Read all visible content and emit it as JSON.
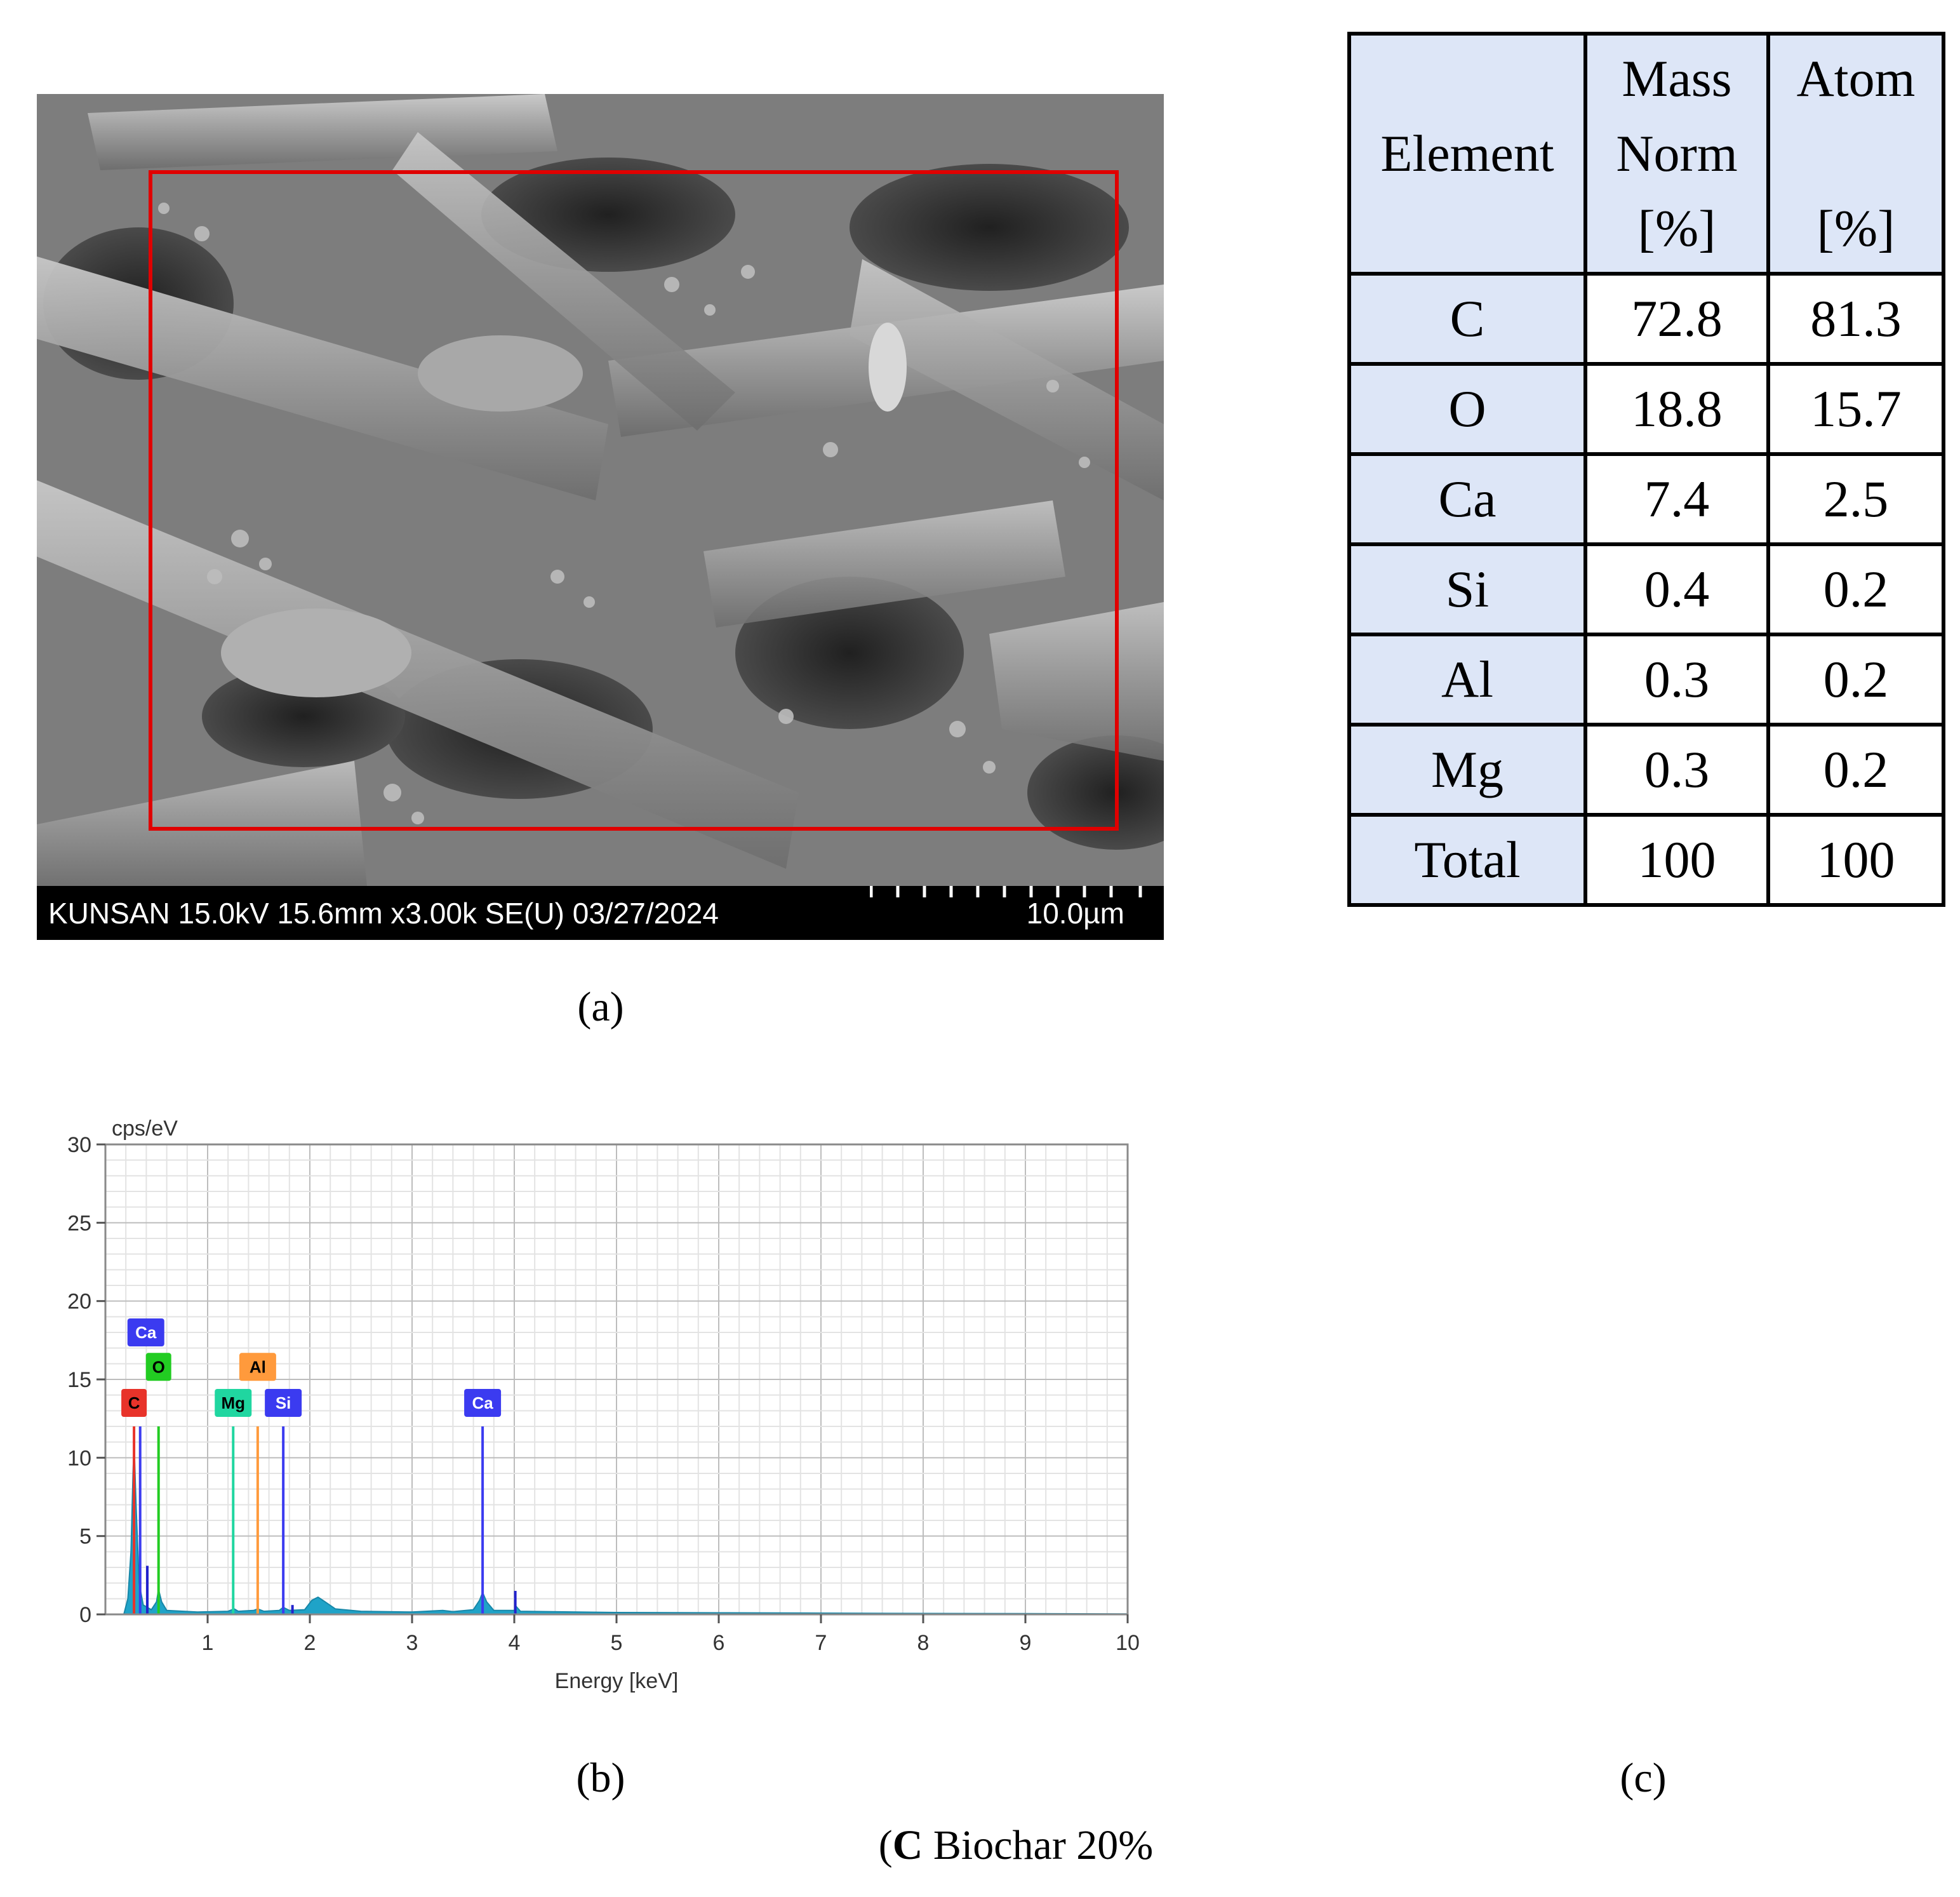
{
  "panel_a": {
    "sem_info_bar": "KUNSAN 15.0kV 15.6mm x3.00k SE(U) 03/27/2024",
    "scale_bar_label": "10.0µm",
    "caption": "(a)"
  },
  "panel_b": {
    "caption": "(b)"
  },
  "panel_c": {
    "caption": "(c)",
    "headers": {
      "element": "Element",
      "mass": [
        "Mass",
        "Norm",
        "[%]"
      ],
      "atom": [
        "Atom",
        "[%]"
      ]
    },
    "rows": [
      {
        "element": "C",
        "mass": "72.8",
        "atom": "81.3"
      },
      {
        "element": "O",
        "mass": "18.8",
        "atom": "15.7"
      },
      {
        "element": "Ca",
        "mass": "7.4",
        "atom": "2.5"
      },
      {
        "element": "Si",
        "mass": "0.4",
        "atom": "0.2"
      },
      {
        "element": "Al",
        "mass": "0.3",
        "atom": "0.2"
      },
      {
        "element": "Mg",
        "mass": "0.3",
        "atom": "0.2"
      },
      {
        "element": "Total",
        "mass": "100",
        "atom": "100"
      }
    ]
  },
  "figure_caption": {
    "letter": "C",
    "rest": " Biochar 20%"
  },
  "colors": {
    "roi": "#e00000",
    "table_fill": "#dde6f7",
    "spectrum_fill": "#1fa3c8"
  },
  "chart_data": {
    "type": "line",
    "title": "",
    "xlabel": "Energy [keV]",
    "ylabel": "cps/eV",
    "xlim": [
      0,
      10
    ],
    "ylim": [
      0,
      30
    ],
    "x_ticks": [
      1,
      2,
      3,
      4,
      5,
      6,
      7,
      8,
      9,
      10
    ],
    "y_ticks": [
      0,
      5,
      10,
      15,
      20,
      25,
      30
    ],
    "grid": true,
    "spectrum": [
      [
        0.18,
        0.0
      ],
      [
        0.22,
        1.0
      ],
      [
        0.25,
        4.0
      ],
      [
        0.27,
        9.0
      ],
      [
        0.28,
        11.0
      ],
      [
        0.3,
        7.0
      ],
      [
        0.33,
        2.0
      ],
      [
        0.37,
        0.6
      ],
      [
        0.45,
        0.3
      ],
      [
        0.5,
        0.8
      ],
      [
        0.52,
        1.6
      ],
      [
        0.55,
        0.8
      ],
      [
        0.6,
        0.25
      ],
      [
        0.9,
        0.15
      ],
      [
        1.2,
        0.2
      ],
      [
        1.26,
        0.35
      ],
      [
        1.3,
        0.2
      ],
      [
        1.45,
        0.25
      ],
      [
        1.49,
        0.35
      ],
      [
        1.55,
        0.2
      ],
      [
        1.7,
        0.25
      ],
      [
        1.74,
        0.45
      ],
      [
        1.8,
        0.25
      ],
      [
        1.95,
        0.3
      ],
      [
        2.02,
        0.9
      ],
      [
        2.08,
        1.1
      ],
      [
        2.15,
        0.8
      ],
      [
        2.25,
        0.35
      ],
      [
        2.5,
        0.2
      ],
      [
        3.0,
        0.15
      ],
      [
        3.3,
        0.25
      ],
      [
        3.4,
        0.18
      ],
      [
        3.6,
        0.3
      ],
      [
        3.66,
        0.9
      ],
      [
        3.69,
        1.4
      ],
      [
        3.73,
        0.8
      ],
      [
        3.8,
        0.25
      ],
      [
        4.0,
        0.25
      ],
      [
        4.02,
        0.5
      ],
      [
        4.06,
        0.2
      ],
      [
        5.0,
        0.12
      ],
      [
        6.0,
        0.1
      ],
      [
        7.0,
        0.08
      ],
      [
        8.0,
        0.06
      ],
      [
        9.0,
        0.05
      ],
      [
        10.0,
        0.03
      ]
    ],
    "element_lines": [
      {
        "label": "C",
        "energy": 0.28,
        "height": 12,
        "color": "#e8332a",
        "badge_level": 1
      },
      {
        "label": "Ca",
        "energy": 0.34,
        "height": 12,
        "color": "#3b3bf0",
        "badge_level": 3
      },
      {
        "label": "O",
        "energy": 0.52,
        "height": 12,
        "color": "#22cc22",
        "badge_level": 2
      },
      {
        "label": "Mg",
        "energy": 1.25,
        "height": 12,
        "color": "#20d6a0",
        "badge_level": 1
      },
      {
        "label": "Al",
        "energy": 1.49,
        "height": 12,
        "color": "#ff9a3c",
        "badge_level": 2
      },
      {
        "label": "Si",
        "energy": 1.74,
        "height": 12,
        "color": "#3b3bf0",
        "badge_level": 1
      },
      {
        "label": "Ca",
        "energy": 3.69,
        "height": 12,
        "color": "#3b3bf0",
        "badge_level": 1
      }
    ],
    "minor_lines": [
      {
        "energy": 0.41,
        "height": 3.1,
        "color": "#2222cc"
      },
      {
        "energy": 4.01,
        "height": 1.5,
        "color": "#2222cc"
      },
      {
        "energy": 1.83,
        "height": 0.6,
        "color": "#2222cc"
      }
    ]
  }
}
